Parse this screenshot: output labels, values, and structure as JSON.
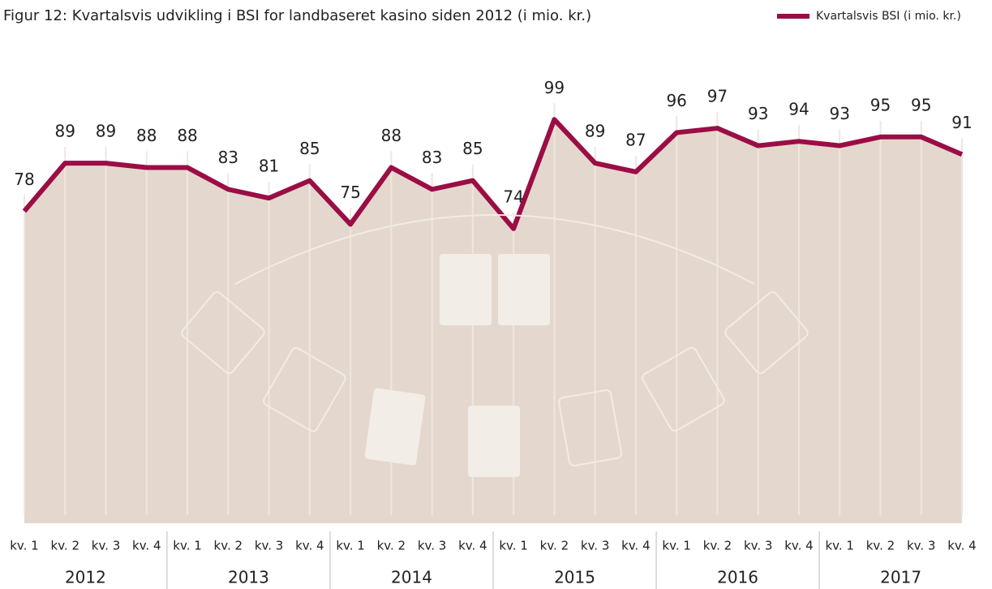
{
  "chart_data": {
    "type": "line",
    "title": "Figur 12: Kvartalsvis udvikling i BSI for landbaseret kasino siden 2012 (i mio. kr.)",
    "categories": [
      "kv. 1",
      "kv. 2",
      "kv. 3",
      "kv. 4",
      "kv. 1",
      "kv. 2",
      "kv. 3",
      "kv. 4",
      "kv. 1",
      "kv. 2",
      "kv. 3",
      "kv. 4",
      "kv. 1",
      "kv. 2",
      "kv. 3",
      "kv. 4",
      "kv. 1",
      "kv. 2",
      "kv. 3",
      "kv. 4",
      "kv. 1",
      "kv. 2",
      "kv. 3",
      "kv. 4"
    ],
    "groups": [
      "2012",
      "2013",
      "2014",
      "2015",
      "2016",
      "2017"
    ],
    "series": [
      {
        "name": "Kvartalsvis BSI (i mio. kr.)",
        "color": "#9b0d45",
        "values": [
          78,
          89,
          89,
          88,
          88,
          83,
          81,
          85,
          75,
          88,
          83,
          85,
          74,
          99,
          89,
          87,
          96,
          97,
          93,
          94,
          93,
          95,
          95,
          91
        ]
      }
    ],
    "area_color": "#e4d8ce",
    "ylim": [
      6.5,
      105
    ],
    "legend": "top-right"
  }
}
